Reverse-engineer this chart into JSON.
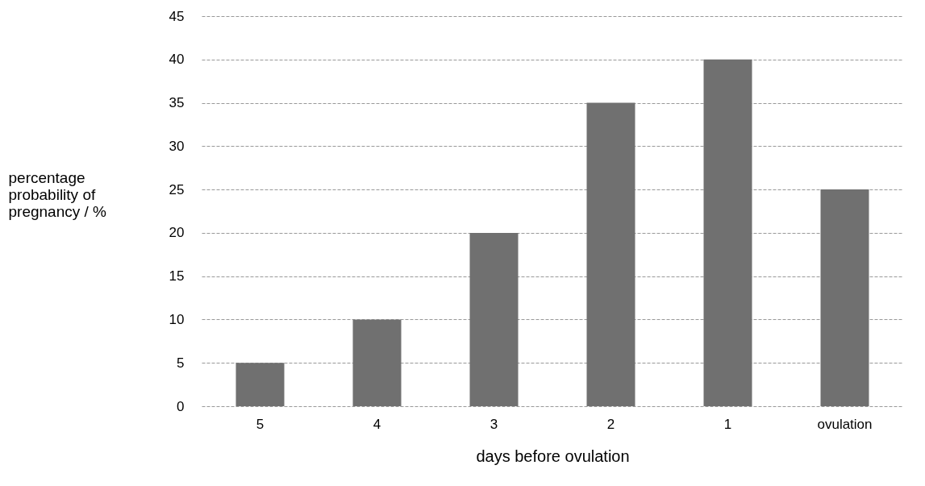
{
  "chart_data": {
    "type": "bar",
    "xlabel": "days before ovulation",
    "ylabel": "percentage probability of pregnancy / %",
    "categories": [
      "5",
      "4",
      "3",
      "2",
      "1",
      "ovulation"
    ],
    "values": [
      5,
      10,
      20,
      35,
      40,
      25
    ],
    "color": "#707070",
    "ylim": [
      0,
      45
    ],
    "yticks": [
      0,
      5,
      10,
      15,
      20,
      25,
      30,
      35,
      40,
      45
    ],
    "grid": "y"
  }
}
